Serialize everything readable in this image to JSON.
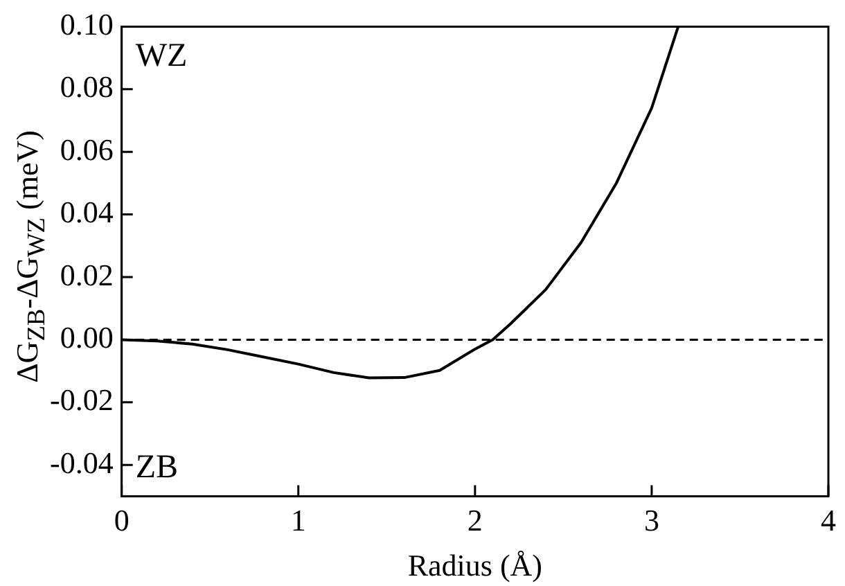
{
  "chart_data": {
    "type": "line",
    "xlabel": "Radius (Å)",
    "ylabel": "ΔG$_{ZB}$-ΔG$_{WZ}$ (meV)",
    "x": [
      0,
      0.2,
      0.4,
      0.6,
      0.8,
      1.0,
      1.2,
      1.4,
      1.6,
      1.8,
      2.0,
      2.1,
      2.2,
      2.4,
      2.6,
      2.8,
      3.0,
      3.15
    ],
    "series": [
      {
        "color": "#000000",
        "values": [
          0,
          -0.0004,
          -0.0014,
          -0.0032,
          -0.0055,
          -0.0078,
          -0.0105,
          -0.0122,
          -0.0121,
          -0.0098,
          -0.003,
          0.0,
          0.005,
          0.016,
          0.031,
          0.05,
          0.074,
          0.1
        ]
      }
    ],
    "xlim": [
      0,
      4
    ],
    "xticks": [
      0,
      1,
      2,
      3,
      4
    ],
    "ylim": [
      -0.05,
      0.1
    ],
    "yticks": [
      {
        "value": -0.04,
        "label": "-0.04"
      },
      {
        "value": -0.02,
        "label": "-0.02"
      },
      {
        "value": 0,
        "label": "0.00"
      },
      {
        "value": 0.02,
        "label": "0.02"
      },
      {
        "value": 0.04,
        "label": "0.04"
      },
      {
        "value": 0.06,
        "label": "0.06"
      },
      {
        "value": 0.08,
        "label": "0.08"
      },
      {
        "value": 0.1,
        "label": "0.10"
      }
    ],
    "ref_lines": [
      {
        "axis": "y",
        "value": 0,
        "line_style": "dashed",
        "color": "#000000"
      }
    ],
    "annotations": [
      "WZ",
      "ZB"
    ],
    "grid": false,
    "legend": false,
    "marker": "none",
    "line_style": "solid"
  }
}
